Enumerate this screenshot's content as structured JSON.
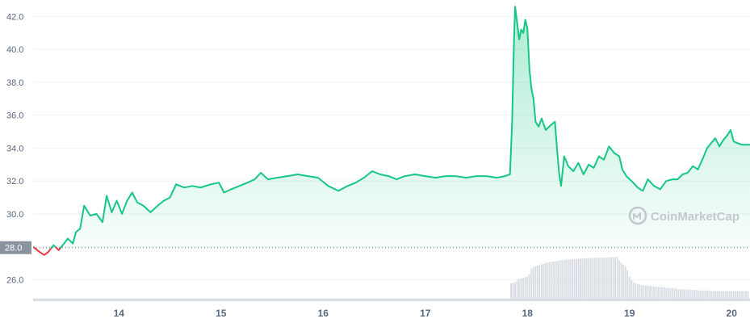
{
  "chart_data": {
    "type": "area",
    "y_ticks": [
      26.0,
      28.0,
      30.0,
      32.0,
      34.0,
      36.0,
      38.0,
      40.0,
      42.0
    ],
    "y_tick_labels": [
      "26.0",
      "28.0",
      "30.0",
      "32.0",
      "34.0",
      "36.0",
      "38.0",
      "40.0",
      "42.0"
    ],
    "ylim": [
      24.6,
      43.0
    ],
    "x_ticks": [
      14,
      15,
      16,
      17,
      18,
      19,
      20
    ],
    "x_tick_labels": [
      "14",
      "15",
      "16",
      "17",
      "18",
      "19",
      "20"
    ],
    "xlim": [
      13.16,
      20.18
    ],
    "baseline": {
      "value": 27.95,
      "label": "28.0"
    },
    "grid": true,
    "series": [
      {
        "values": [
          [
            13.16,
            28.0
          ],
          [
            13.22,
            27.7
          ],
          [
            13.27,
            27.5
          ],
          [
            13.31,
            27.7
          ],
          [
            13.36,
            28.1
          ],
          [
            13.41,
            27.8
          ],
          [
            13.45,
            28.1
          ],
          [
            13.5,
            28.5
          ],
          [
            13.55,
            28.2
          ],
          [
            13.58,
            28.9
          ],
          [
            13.62,
            29.1
          ],
          [
            13.66,
            30.5
          ],
          [
            13.72,
            29.9
          ],
          [
            13.78,
            30.0
          ],
          [
            13.84,
            29.5
          ],
          [
            13.88,
            31.1
          ],
          [
            13.93,
            30.1
          ],
          [
            13.98,
            30.8
          ],
          [
            14.03,
            30.0
          ],
          [
            14.08,
            30.8
          ],
          [
            14.13,
            31.3
          ],
          [
            14.18,
            30.7
          ],
          [
            14.24,
            30.5
          ],
          [
            14.31,
            30.1
          ],
          [
            14.38,
            30.5
          ],
          [
            14.44,
            30.8
          ],
          [
            14.5,
            31.0
          ],
          [
            14.56,
            31.8
          ],
          [
            14.64,
            31.6
          ],
          [
            14.72,
            31.7
          ],
          [
            14.8,
            31.6
          ],
          [
            14.9,
            31.8
          ],
          [
            14.98,
            31.9
          ],
          [
            15.03,
            31.3
          ],
          [
            15.1,
            31.5
          ],
          [
            15.18,
            31.7
          ],
          [
            15.26,
            31.9
          ],
          [
            15.33,
            32.1
          ],
          [
            15.39,
            32.5
          ],
          [
            15.46,
            32.1
          ],
          [
            15.55,
            32.2
          ],
          [
            15.65,
            32.3
          ],
          [
            15.75,
            32.4
          ],
          [
            15.85,
            32.3
          ],
          [
            15.95,
            32.2
          ],
          [
            16.05,
            31.7
          ],
          [
            16.15,
            31.4
          ],
          [
            16.24,
            31.7
          ],
          [
            16.32,
            31.9
          ],
          [
            16.4,
            32.2
          ],
          [
            16.48,
            32.6
          ],
          [
            16.56,
            32.4
          ],
          [
            16.64,
            32.3
          ],
          [
            16.72,
            32.1
          ],
          [
            16.8,
            32.3
          ],
          [
            16.9,
            32.4
          ],
          [
            17.0,
            32.3
          ],
          [
            17.1,
            32.2
          ],
          [
            17.2,
            32.3
          ],
          [
            17.3,
            32.3
          ],
          [
            17.4,
            32.2
          ],
          [
            17.5,
            32.3
          ],
          [
            17.6,
            32.3
          ],
          [
            17.7,
            32.2
          ],
          [
            17.78,
            32.3
          ],
          [
            17.83,
            32.4
          ],
          [
            17.85,
            35.5
          ],
          [
            17.87,
            40.8
          ],
          [
            17.88,
            42.6
          ],
          [
            17.9,
            41.6
          ],
          [
            17.92,
            40.6
          ],
          [
            17.94,
            41.2
          ],
          [
            17.96,
            41.0
          ],
          [
            17.98,
            41.8
          ],
          [
            18.0,
            41.3
          ],
          [
            18.02,
            38.8
          ],
          [
            18.04,
            37.6
          ],
          [
            18.06,
            37.0
          ],
          [
            18.08,
            35.6
          ],
          [
            18.11,
            35.3
          ],
          [
            18.14,
            35.8
          ],
          [
            18.18,
            35.1
          ],
          [
            18.23,
            35.4
          ],
          [
            18.27,
            35.6
          ],
          [
            18.29,
            34.0
          ],
          [
            18.31,
            32.5
          ],
          [
            18.33,
            31.7
          ],
          [
            18.36,
            33.5
          ],
          [
            18.4,
            32.9
          ],
          [
            18.45,
            32.6
          ],
          [
            18.5,
            33.1
          ],
          [
            18.55,
            32.4
          ],
          [
            18.6,
            33.0
          ],
          [
            18.65,
            32.8
          ],
          [
            18.7,
            33.5
          ],
          [
            18.75,
            33.3
          ],
          [
            18.8,
            34.1
          ],
          [
            18.85,
            33.7
          ],
          [
            18.9,
            33.5
          ],
          [
            18.93,
            32.7
          ],
          [
            18.97,
            32.3
          ],
          [
            19.02,
            32.0
          ],
          [
            19.08,
            31.6
          ],
          [
            19.13,
            31.4
          ],
          [
            19.18,
            32.1
          ],
          [
            19.24,
            31.7
          ],
          [
            19.3,
            31.5
          ],
          [
            19.36,
            32.0
          ],
          [
            19.42,
            32.1
          ],
          [
            19.47,
            32.1
          ],
          [
            19.52,
            32.4
          ],
          [
            19.57,
            32.5
          ],
          [
            19.62,
            32.9
          ],
          [
            19.67,
            32.7
          ],
          [
            19.72,
            33.4
          ],
          [
            19.76,
            34.0
          ],
          [
            19.8,
            34.3
          ],
          [
            19.84,
            34.6
          ],
          [
            19.88,
            34.1
          ],
          [
            19.92,
            34.5
          ],
          [
            19.96,
            34.8
          ],
          [
            19.99,
            35.1
          ],
          [
            20.02,
            34.4
          ],
          [
            20.06,
            34.3
          ],
          [
            20.1,
            34.2
          ],
          [
            20.14,
            34.2
          ],
          [
            20.18,
            34.2
          ]
        ]
      }
    ],
    "volume": {
      "bar_days": [
        17.84,
        17.86,
        17.88,
        17.9,
        17.92,
        17.94,
        17.96,
        17.98,
        18.0,
        18.02,
        18.04,
        18.06,
        18.08,
        18.1,
        18.12,
        18.14,
        18.16,
        18.18,
        18.2,
        18.22,
        18.24,
        18.26,
        18.28,
        18.3,
        18.32,
        18.34,
        18.36,
        18.38,
        18.4,
        18.42,
        18.44,
        18.46,
        18.48,
        18.5,
        18.52,
        18.54,
        18.56,
        18.58,
        18.6,
        18.62,
        18.64,
        18.66,
        18.68,
        18.7,
        18.72,
        18.74,
        18.76,
        18.78,
        18.8,
        18.82,
        18.84,
        18.86,
        18.88,
        18.9,
        18.92,
        18.94,
        18.96,
        18.98,
        19.0,
        19.02,
        19.04,
        19.06,
        19.08,
        19.1,
        19.12,
        19.14,
        19.16,
        19.18,
        19.2,
        19.22,
        19.24,
        19.26,
        19.28,
        19.3,
        19.32,
        19.34,
        19.36,
        19.38,
        19.4,
        19.42,
        19.44,
        19.46,
        19.48,
        19.5,
        19.52,
        19.54,
        19.56,
        19.58,
        19.6,
        19.62,
        19.64,
        19.66,
        19.68,
        19.7,
        19.72,
        19.74,
        19.76,
        19.78,
        19.8,
        19.82,
        19.84,
        19.86,
        19.88,
        19.9,
        19.92,
        19.94,
        19.96,
        19.98,
        20.0,
        20.02,
        20.04,
        20.06,
        20.08,
        20.1,
        20.12,
        20.14,
        20.16
      ],
      "bar_levels": [
        0.4,
        0.41,
        0.43,
        0.47,
        0.5,
        0.51,
        0.52,
        0.54,
        0.56,
        0.61,
        0.73,
        0.77,
        0.79,
        0.8,
        0.81,
        0.83,
        0.84,
        0.86,
        0.87,
        0.88,
        0.89,
        0.89,
        0.9,
        0.91,
        0.92,
        0.92,
        0.93,
        0.93,
        0.94,
        0.94,
        0.95,
        0.95,
        0.95,
        0.96,
        0.96,
        0.96,
        0.96,
        0.97,
        0.97,
        0.97,
        0.97,
        0.97,
        0.98,
        0.98,
        0.98,
        0.98,
        0.98,
        0.98,
        0.99,
        0.99,
        0.99,
        0.99,
        1.0,
        0.92,
        0.86,
        0.82,
        0.78,
        0.7,
        0.55,
        0.47,
        0.42,
        0.4,
        0.39,
        0.38,
        0.36,
        0.36,
        0.35,
        0.35,
        0.34,
        0.34,
        0.33,
        0.33,
        0.32,
        0.32,
        0.31,
        0.31,
        0.3,
        0.3,
        0.29,
        0.29,
        0.28,
        0.28,
        0.27,
        0.27,
        0.27,
        0.26,
        0.26,
        0.26,
        0.25,
        0.25,
        0.25,
        0.25,
        0.24,
        0.24,
        0.24,
        0.24,
        0.24,
        0.24,
        0.23,
        0.23,
        0.23,
        0.23,
        0.23,
        0.23,
        0.23,
        0.23,
        0.23,
        0.23,
        0.23,
        0.23,
        0.23,
        0.23,
        0.23,
        0.23,
        0.23,
        0.23,
        0.23
      ],
      "base_level": 0.06
    },
    "watermark": "CoinMarketCap"
  },
  "colors": {
    "up_line": "#16c784",
    "down_line": "#ea3943",
    "area_top": "#16c784",
    "grid": "#eff2f5",
    "axis_text": "#58667e",
    "baseline_label_bg": "#8b949e",
    "volume_bar": "#d9dde4",
    "watermark": "#c3c8d0"
  },
  "watermark_icon": "coinmarketcap-logo-icon"
}
